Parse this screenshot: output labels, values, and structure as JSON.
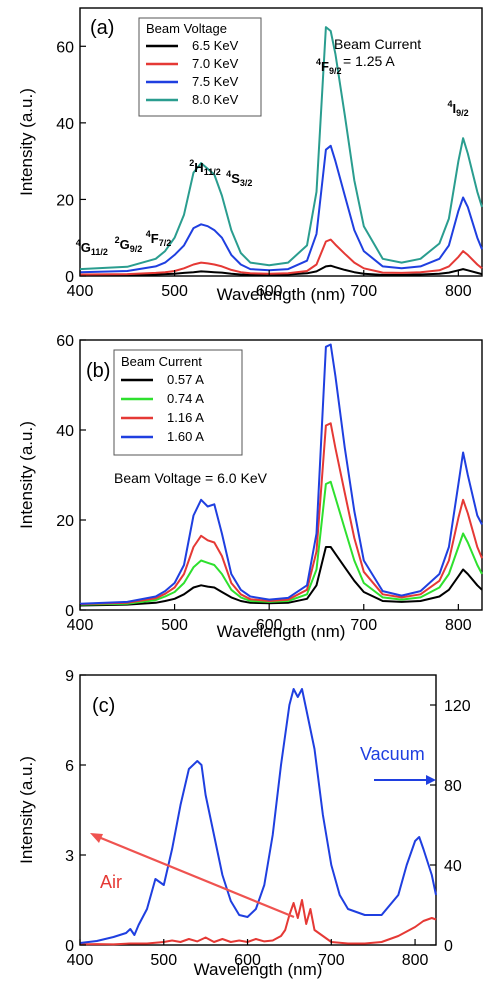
{
  "chart_data": [
    {
      "type": "line",
      "panel_label": "(a)",
      "xlabel": "Wavelength (nm)",
      "ylabel": "Intensity (a.u.)",
      "xlim": [
        400,
        825
      ],
      "ylim": [
        0,
        70
      ],
      "x_ticks": [
        400,
        500,
        600,
        700,
        800
      ],
      "y_ticks": [
        0,
        20,
        40,
        60
      ],
      "legend_title": "Beam Voltage",
      "legend_position": "top-left",
      "annotation": [
        "Beam Current",
        "= 1.25 A"
      ],
      "level_labels": [
        {
          "main": "4",
          "sub": "G",
          "tail": "11/2",
          "x": 404
        },
        {
          "main": "2",
          "sub": "G",
          "tail": "9/2",
          "x": 445
        },
        {
          "main": "4",
          "sub": "F",
          "tail": "7/2",
          "x": 478
        },
        {
          "main": "2",
          "sub": "H",
          "tail": "11/2",
          "x": 524
        },
        {
          "main": "4",
          "sub": "S",
          "tail": "3/2",
          "x": 563
        },
        {
          "main": "4",
          "sub": "F",
          "tail": "9/2",
          "x": 658
        },
        {
          "main": "4",
          "sub": "I",
          "tail": "9/2",
          "x": 797
        }
      ],
      "x": [
        400,
        450,
        480,
        490,
        500,
        510,
        520,
        528,
        535,
        542,
        550,
        560,
        570,
        580,
        600,
        620,
        640,
        650,
        660,
        665,
        670,
        680,
        690,
        700,
        720,
        740,
        760,
        780,
        790,
        800,
        805,
        810,
        820,
        825
      ],
      "series": [
        {
          "name": "6.5 KeV",
          "color": "#000000",
          "values": [
            0.2,
            0.3,
            0.4,
            0.5,
            0.6,
            0.8,
            1.0,
            1.2,
            1.1,
            1.0,
            0.9,
            0.6,
            0.4,
            0.3,
            0.3,
            0.4,
            0.7,
            1.2,
            2.5,
            2.7,
            2.3,
            1.6,
            1.0,
            0.6,
            0.3,
            0.3,
            0.4,
            0.6,
            0.9,
            1.5,
            1.8,
            1.5,
            0.8,
            0.5
          ]
        },
        {
          "name": "7.0 KeV",
          "color": "#e53935",
          "values": [
            0.4,
            0.5,
            0.8,
            1.0,
            1.3,
            2.0,
            3.0,
            3.5,
            3.3,
            3.0,
            2.5,
            1.6,
            1.0,
            0.7,
            0.6,
            0.7,
            1.3,
            3.0,
            9.0,
            9.5,
            8.2,
            5.8,
            3.5,
            2.0,
            0.9,
            0.8,
            1.0,
            1.5,
            2.5,
            5.0,
            6.5,
            5.5,
            3.0,
            2.0
          ]
        },
        {
          "name": "7.5 KeV",
          "color": "#1f3fe0",
          "values": [
            1.0,
            1.3,
            2.5,
            3.5,
            5.5,
            8.0,
            12.5,
            13.5,
            13.0,
            12.0,
            10.0,
            5.5,
            3.0,
            1.8,
            1.5,
            1.8,
            4.0,
            11.0,
            33.0,
            34.0,
            30.0,
            21.0,
            12.0,
            6.5,
            2.5,
            2.0,
            2.5,
            4.5,
            8.0,
            17.0,
            20.5,
            18.0,
            10.0,
            7.0
          ]
        },
        {
          "name": "8.0 KeV",
          "color": "#2a9d8f",
          "values": [
            1.8,
            2.4,
            4.5,
            6.5,
            10.0,
            16.0,
            27.0,
            29.5,
            28.0,
            26.5,
            21.0,
            12.0,
            6.0,
            3.5,
            2.8,
            3.5,
            8.0,
            22.0,
            65.0,
            64.0,
            58.0,
            42.0,
            25.0,
            13.0,
            4.5,
            3.5,
            4.5,
            8.5,
            15.0,
            30.0,
            36.0,
            32.0,
            22.0,
            18.0
          ]
        }
      ]
    },
    {
      "type": "line",
      "panel_label": "(b)",
      "xlabel": "Wavelength (nm)",
      "ylabel": "Intensity (a.u.)",
      "xlim": [
        400,
        825
      ],
      "ylim": [
        0,
        60
      ],
      "x_ticks": [
        400,
        500,
        600,
        700,
        800
      ],
      "y_ticks": [
        0,
        20,
        40,
        60
      ],
      "legend_title": "Beam Current",
      "legend_position": "top-left",
      "annotation": [
        "Beam Voltage = 6.0 KeV"
      ],
      "x": [
        400,
        450,
        480,
        490,
        500,
        510,
        520,
        528,
        535,
        542,
        550,
        560,
        570,
        580,
        600,
        620,
        640,
        650,
        660,
        665,
        670,
        680,
        690,
        700,
        720,
        740,
        760,
        780,
        790,
        800,
        805,
        810,
        820,
        825
      ],
      "series": [
        {
          "name": "0.57 A",
          "color": "#000000",
          "values": [
            1.0,
            1.2,
            1.6,
            2.0,
            2.5,
            3.5,
            5.0,
            5.5,
            5.2,
            5.0,
            4.0,
            2.8,
            2.0,
            1.6,
            1.5,
            1.6,
            2.5,
            5.5,
            14.0,
            14.0,
            12.5,
            9.5,
            6.5,
            4.0,
            2.0,
            1.8,
            2.0,
            3.0,
            4.5,
            7.5,
            9.0,
            8.0,
            5.5,
            4.5
          ]
        },
        {
          "name": "0.74 A",
          "color": "#2ee02e",
          "values": [
            1.2,
            1.4,
            2.2,
            3.0,
            4.0,
            6.0,
            9.5,
            11.0,
            10.5,
            10.0,
            8.0,
            4.5,
            2.8,
            2.0,
            1.8,
            2.0,
            3.5,
            9.0,
            28.0,
            28.5,
            25.0,
            18.0,
            11.0,
            6.0,
            2.8,
            2.3,
            2.8,
            5.0,
            8.0,
            14.0,
            17.0,
            15.0,
            10.0,
            8.0
          ]
        },
        {
          "name": "1.16 A",
          "color": "#e53935",
          "values": [
            1.3,
            1.6,
            2.6,
            3.6,
            5.0,
            8.0,
            14.0,
            16.5,
            15.5,
            15.0,
            12.0,
            6.0,
            3.5,
            2.4,
            2.0,
            2.3,
            4.5,
            13.0,
            41.0,
            41.5,
            36.0,
            26.0,
            16.0,
            8.5,
            3.5,
            2.8,
            3.5,
            6.5,
            11.0,
            20.5,
            24.5,
            21.5,
            14.0,
            11.5
          ]
        },
        {
          "name": "1.60 A",
          "color": "#1f3fe0",
          "values": [
            1.4,
            1.8,
            3.0,
            4.2,
            6.0,
            10.0,
            21.0,
            24.5,
            23.0,
            23.5,
            17.0,
            8.0,
            4.5,
            3.0,
            2.3,
            2.7,
            5.5,
            17.0,
            58.5,
            59.0,
            52.0,
            36.0,
            22.0,
            11.0,
            4.2,
            3.2,
            4.2,
            8.0,
            14.0,
            28.0,
            35.0,
            30.0,
            21.0,
            19.0
          ]
        }
      ]
    },
    {
      "type": "line",
      "panel_label": "(c)",
      "xlabel": "Wavelength (nm)",
      "ylabel": "Intensity (a.u.)",
      "xlim": [
        400,
        825
      ],
      "ylim": [
        0,
        9
      ],
      "y2lim": [
        0,
        135
      ],
      "x_ticks": [
        400,
        500,
        600,
        700,
        800
      ],
      "y_ticks": [
        0,
        3,
        6,
        9
      ],
      "y2_ticks": [
        0,
        40,
        80,
        120
      ],
      "series": [
        {
          "name": "Air",
          "color": "#e53935",
          "axis": "left",
          "x": [
            400,
            420,
            440,
            460,
            480,
            500,
            510,
            520,
            530,
            540,
            550,
            560,
            570,
            580,
            590,
            600,
            610,
            620,
            630,
            640,
            645,
            650,
            655,
            660,
            665,
            670,
            675,
            680,
            690,
            700,
            720,
            740,
            760,
            780,
            800,
            810,
            820,
            825
          ],
          "values": [
            0.02,
            0.03,
            0.02,
            0.05,
            0.05,
            0.1,
            0.15,
            0.1,
            0.2,
            0.12,
            0.25,
            0.1,
            0.2,
            0.1,
            0.15,
            0.1,
            0.2,
            0.12,
            0.15,
            0.3,
            0.5,
            1.0,
            1.4,
            0.9,
            1.5,
            0.7,
            1.2,
            0.5,
            0.3,
            0.1,
            0.05,
            0.05,
            0.1,
            0.3,
            0.6,
            0.8,
            0.9,
            0.85
          ]
        },
        {
          "name": "Vacuum",
          "color": "#1f3fe0",
          "axis": "right",
          "x": [
            400,
            420,
            440,
            455,
            460,
            465,
            470,
            480,
            490,
            500,
            510,
            520,
            530,
            540,
            545,
            550,
            560,
            570,
            580,
            590,
            600,
            610,
            620,
            630,
            640,
            650,
            655,
            660,
            665,
            670,
            680,
            690,
            700,
            710,
            720,
            740,
            760,
            780,
            790,
            800,
            805,
            810,
            820,
            825
          ],
          "values": [
            1,
            2,
            4,
            6,
            8,
            5,
            10,
            18,
            33,
            30,
            48,
            70,
            88,
            92,
            90,
            75,
            55,
            35,
            22,
            15,
            14,
            18,
            30,
            55,
            90,
            120,
            128,
            124,
            128,
            118,
            98,
            65,
            40,
            25,
            18,
            15,
            15,
            25,
            40,
            52,
            54,
            48,
            35,
            25
          ]
        }
      ]
    }
  ]
}
